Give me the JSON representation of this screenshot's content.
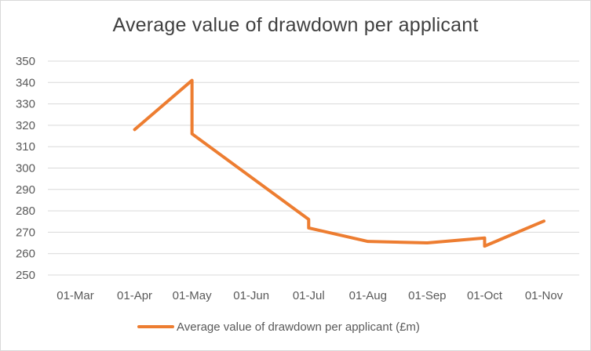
{
  "chart_data": {
    "type": "line",
    "title": "Average value of drawdown per applicant",
    "xlabel": "",
    "ylabel": "",
    "ylim": [
      250,
      350
    ],
    "y_ticks": [
      "250",
      "260",
      "270",
      "280",
      "290",
      "300",
      "310",
      "320",
      "330",
      "340",
      "350"
    ],
    "x_tick_labels": [
      "01-Mar",
      "01-Apr",
      "01-May",
      "01-Jun",
      "01-Jul",
      "01-Aug",
      "01-Sep",
      "01-Oct",
      "01-Nov"
    ],
    "x_tick_dates": [
      "2020-03-01",
      "2020-04-01",
      "2020-05-01",
      "2020-06-01",
      "2020-07-01",
      "2020-08-01",
      "2020-09-01",
      "2020-10-01",
      "2020-11-01"
    ],
    "grid": true,
    "legend_position": "bottom",
    "series": [
      {
        "name": "Average value of drawdown per applicant (£m)",
        "color": "#ed7d31",
        "points": [
          {
            "x": "2020-04-01",
            "y": 318
          },
          {
            "x": "2020-05-01",
            "y": 341
          },
          {
            "x": "2020-05-01",
            "y": 316
          },
          {
            "x": "2020-07-01",
            "y": 276
          },
          {
            "x": "2020-07-01",
            "y": 272
          },
          {
            "x": "2020-08-01",
            "y": 265.7
          },
          {
            "x": "2020-09-01",
            "y": 265
          },
          {
            "x": "2020-10-01",
            "y": 267.3
          },
          {
            "x": "2020-10-01",
            "y": 263.5
          },
          {
            "x": "2020-11-01",
            "y": 275.2
          }
        ]
      }
    ]
  }
}
